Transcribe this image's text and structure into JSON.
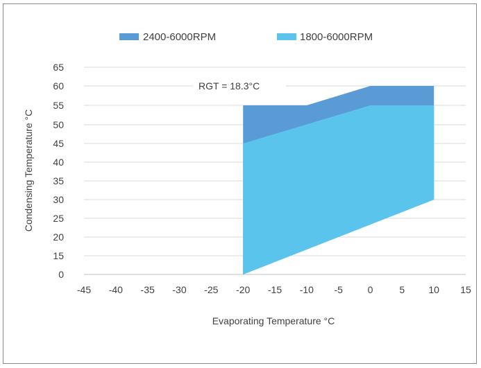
{
  "chart_data": {
    "type": "area",
    "xlabel": "Evaporating Temperature °C",
    "ylabel": "Condensing Temperature °C",
    "xlim": [
      -45,
      15
    ],
    "ylim": [
      0,
      65
    ],
    "x_ticks": [
      "-45",
      "-40",
      "-35",
      "-30",
      "-25",
      "-20",
      "-15",
      "-10",
      "-5",
      "0",
      "5",
      "10",
      "15"
    ],
    "y_ticks": [
      "0",
      "15",
      "20",
      "25",
      "30",
      "35",
      "40",
      "45",
      "50",
      "55",
      "60",
      "65"
    ],
    "grid": true,
    "legend_position": "top",
    "annotation": "RGT = 18.3°C",
    "series": [
      {
        "name": "2400-6000RPM",
        "color": "#5b9bd5",
        "polygon": [
          [
            -20,
            0
          ],
          [
            -20,
            55
          ],
          [
            -10,
            55
          ],
          [
            0,
            60
          ],
          [
            10,
            60
          ],
          [
            10,
            30
          ]
        ]
      },
      {
        "name": "1800-6000RPM",
        "color": "#5bc4ec",
        "polygon": [
          [
            -20,
            0
          ],
          [
            -20,
            45
          ],
          [
            0,
            55
          ],
          [
            10,
            55
          ],
          [
            10,
            30
          ]
        ]
      }
    ]
  }
}
